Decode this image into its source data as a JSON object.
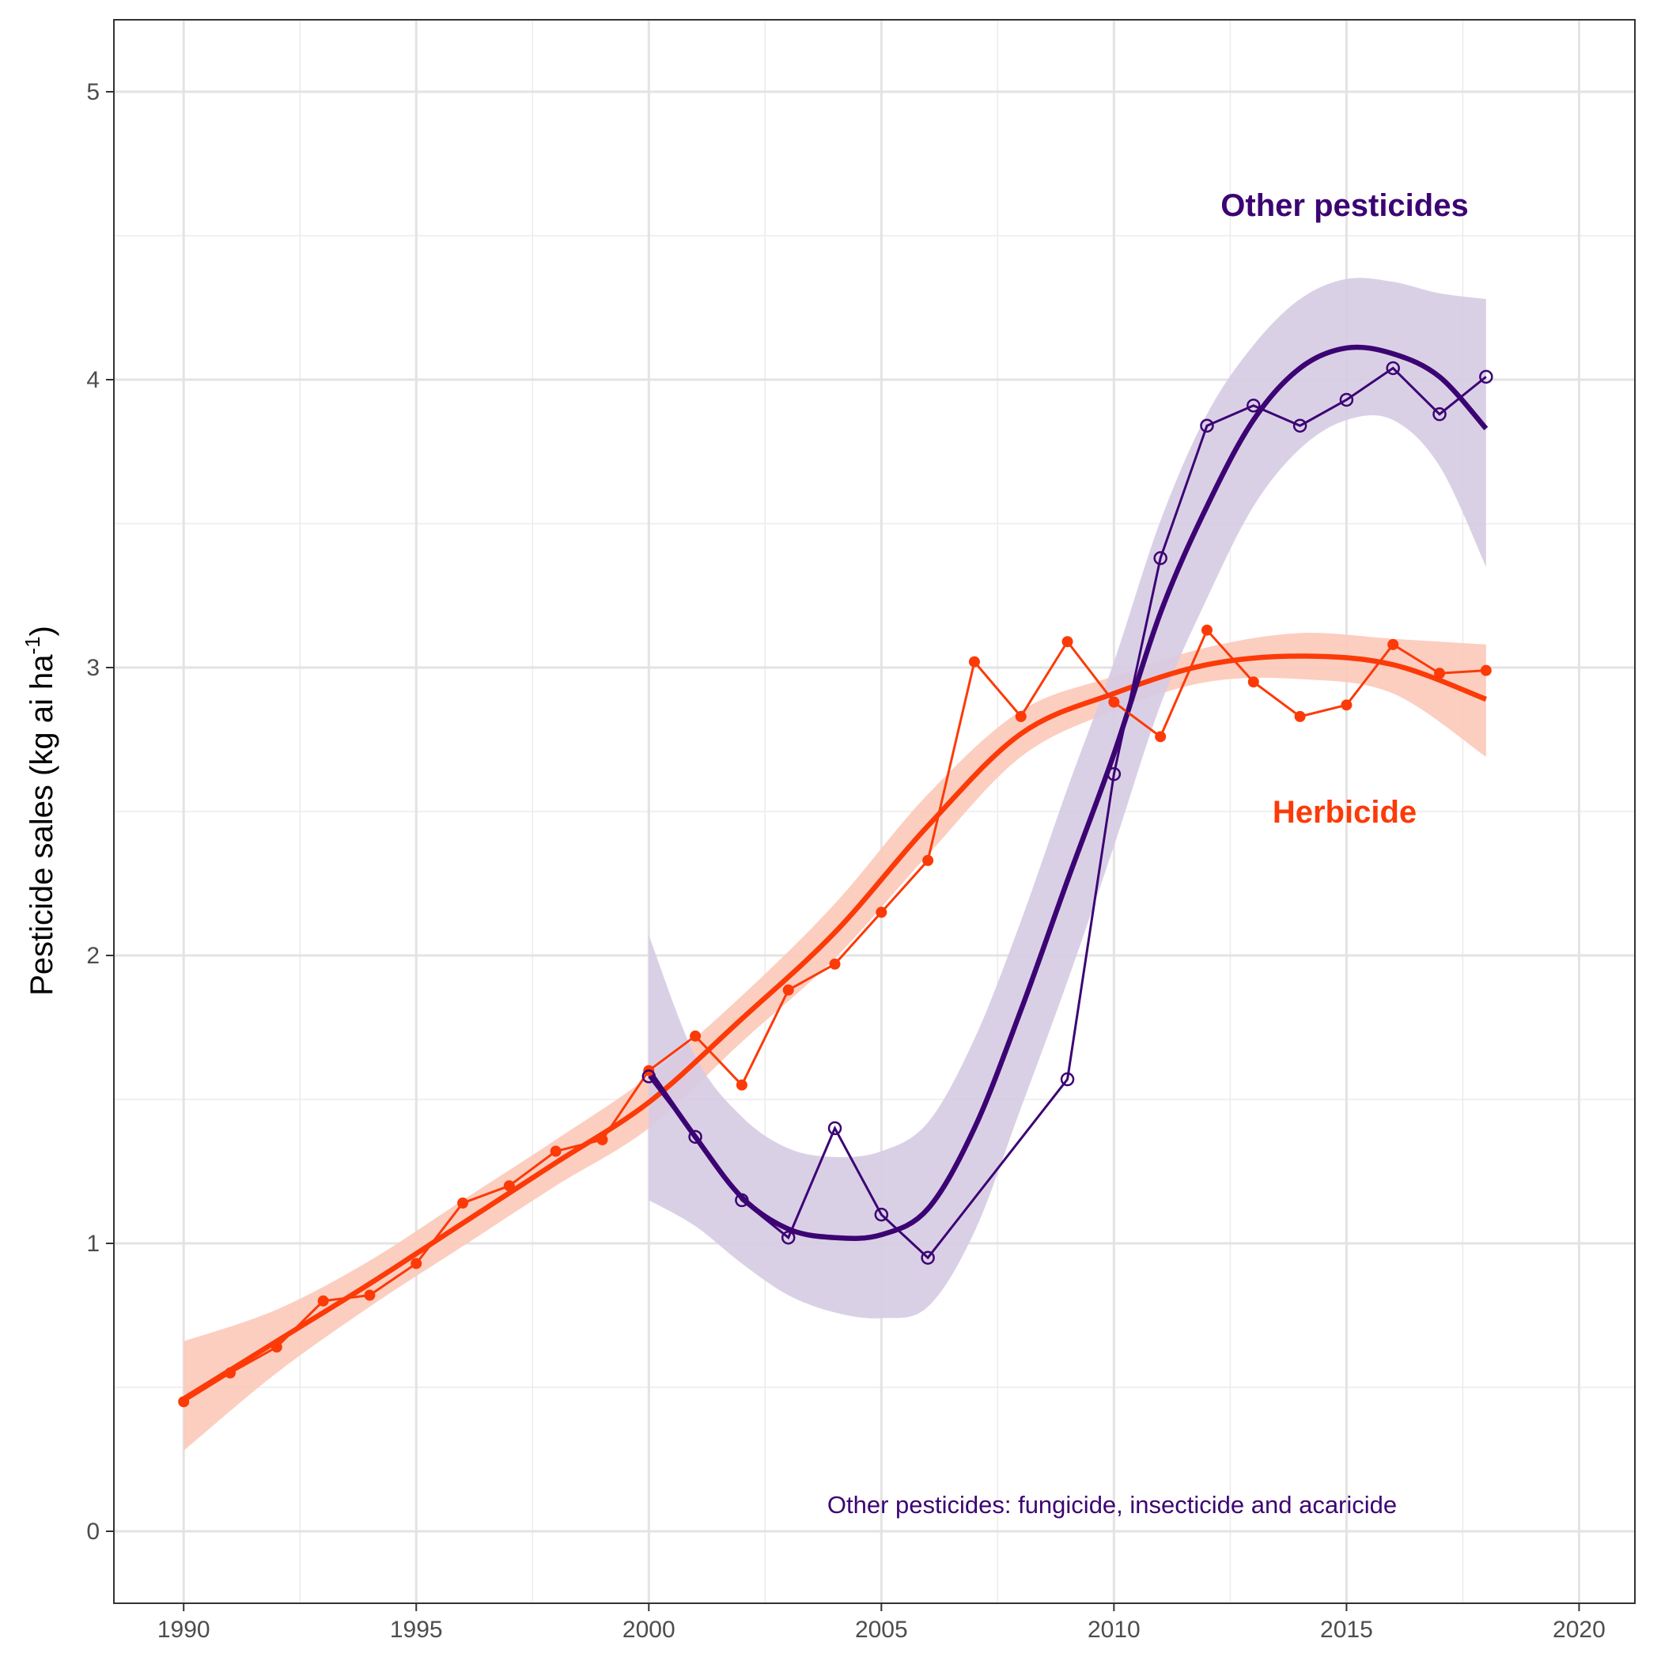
{
  "chart_data": {
    "type": "line",
    "title": "",
    "xlabel": "",
    "ylabel": "Pesticide sales (kg ai ha",
    "ylabel_superscript": "-1",
    "ylabel_close": ")",
    "xlim": [
      1988.5,
      2021.2
    ],
    "ylim": [
      -0.25,
      5.25
    ],
    "x_ticks": [
      1990,
      1995,
      2000,
      2005,
      2010,
      2015,
      2020
    ],
    "y_ticks": [
      0,
      1,
      2,
      3,
      4,
      5
    ],
    "grid": true,
    "colors": {
      "herbicide": "#fc3a08",
      "other": "#3c0473",
      "herbicide_band": "#fcc9b9",
      "other_band": "#d6cbe3"
    },
    "series": [
      {
        "name": "Herbicide",
        "marker": "filled-circle",
        "x": [
          1990,
          1991,
          1992,
          1993,
          1994,
          1995,
          1996,
          1997,
          1998,
          1999,
          2000,
          2001,
          2002,
          2003,
          2004,
          2005,
          2006,
          2007,
          2008,
          2009,
          2010,
          2011,
          2012,
          2013,
          2014,
          2015,
          2016,
          2017,
          2018
        ],
        "values": [
          0.45,
          0.55,
          0.64,
          0.8,
          0.82,
          0.93,
          1.14,
          1.2,
          1.32,
          1.36,
          1.6,
          1.72,
          1.55,
          1.88,
          1.97,
          2.15,
          2.33,
          3.02,
          2.83,
          3.09,
          2.88,
          2.76,
          3.13,
          2.95,
          2.83,
          2.87,
          3.08,
          2.98,
          2.99
        ],
        "trend": {
          "x": [
            1990,
            1992,
            1994,
            1996,
            1998,
            2000,
            2002,
            2004,
            2006,
            2008,
            2010,
            2012,
            2014,
            2016,
            2018
          ],
          "values": [
            0.46,
            0.66,
            0.86,
            1.07,
            1.28,
            1.49,
            1.78,
            2.08,
            2.45,
            2.77,
            2.91,
            3.01,
            3.04,
            3.01,
            2.89
          ],
          "upper": [
            0.66,
            0.77,
            0.94,
            1.15,
            1.36,
            1.58,
            1.86,
            2.18,
            2.56,
            2.85,
            2.97,
            3.07,
            3.12,
            3.1,
            3.08
          ],
          "lower": [
            0.28,
            0.55,
            0.78,
            0.99,
            1.2,
            1.4,
            1.7,
            1.99,
            2.35,
            2.69,
            2.85,
            2.95,
            2.96,
            2.91,
            2.69
          ]
        }
      },
      {
        "name": "Other pesticides",
        "marker": "open-circle",
        "x": [
          2000,
          2001,
          2002,
          2003,
          2004,
          2005,
          2006,
          2009,
          2010,
          2011,
          2012,
          2013,
          2014,
          2015,
          2016,
          2017,
          2018
        ],
        "values": [
          1.58,
          1.37,
          1.15,
          1.02,
          1.4,
          1.1,
          0.95,
          1.57,
          2.63,
          3.38,
          3.84,
          3.91,
          3.84,
          3.93,
          4.04,
          3.88,
          4.01
        ],
        "trend": {
          "x": [
            2000,
            2001,
            2002,
            2003,
            2004,
            2005,
            2006,
            2007,
            2008,
            2009,
            2010,
            2011,
            2012,
            2013,
            2014,
            2015,
            2016,
            2017,
            2018
          ],
          "values": [
            1.6,
            1.37,
            1.16,
            1.05,
            1.02,
            1.03,
            1.12,
            1.4,
            1.81,
            2.26,
            2.7,
            3.19,
            3.56,
            3.86,
            4.04,
            4.11,
            4.09,
            4.01,
            3.83
          ],
          "upper": [
            2.07,
            1.65,
            1.44,
            1.33,
            1.3,
            1.32,
            1.42,
            1.71,
            2.12,
            2.58,
            3.02,
            3.51,
            3.88,
            4.12,
            4.28,
            4.35,
            4.34,
            4.3,
            4.28
          ],
          "lower": [
            1.15,
            1.06,
            0.93,
            0.82,
            0.76,
            0.74,
            0.78,
            1.04,
            1.47,
            1.91,
            2.38,
            2.87,
            3.24,
            3.56,
            3.76,
            3.86,
            3.86,
            3.7,
            3.35
          ]
        }
      }
    ],
    "annotations": {
      "other_label": "Other pesticides",
      "herbicide_label": "Herbicide",
      "note": "Other pesticides: fungicide, insecticide and acaricide"
    }
  }
}
